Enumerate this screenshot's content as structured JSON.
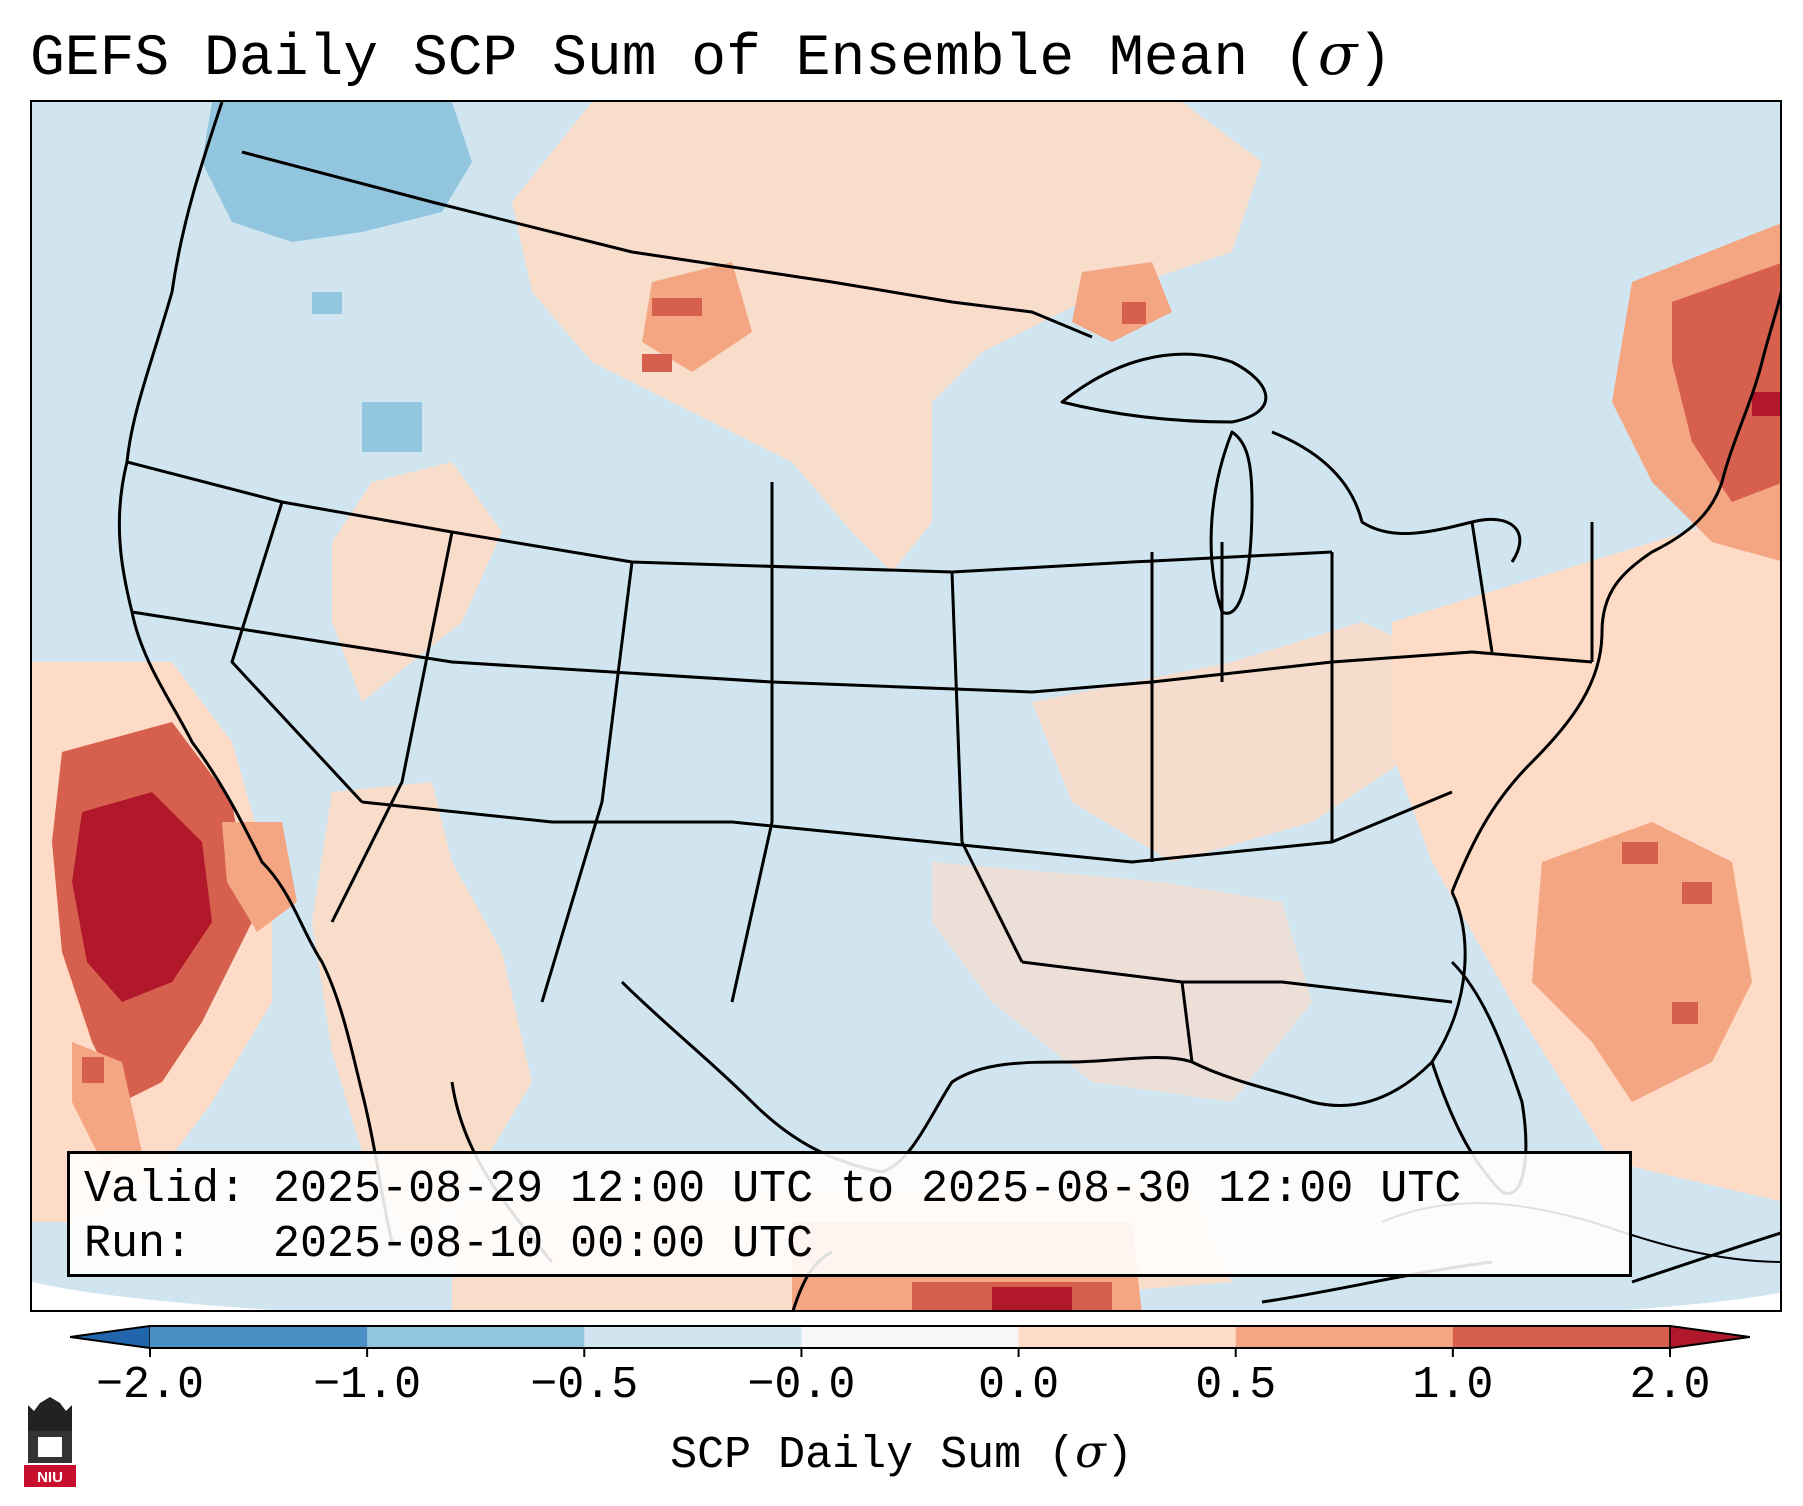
{
  "figure": {
    "title_text": "GEFS Daily SCP Sum of Ensemble Mean (",
    "title_symbol": "σ",
    "title_close": ")"
  },
  "info": {
    "valid_label": "Valid:",
    "valid_value": "2025-08-29 12:00 UTC to 2025-08-30 12:00 UTC",
    "run_label": "Run:",
    "run_value": "2025-08-10 00:00 UTC"
  },
  "colorbar": {
    "label_text": "SCP Daily Sum (",
    "label_symbol": "σ",
    "label_close": ")",
    "ticks": [
      "−2.0",
      "−1.0",
      "−0.5",
      "−0.0",
      "0.0",
      "0.5",
      "1.0",
      "2.0"
    ],
    "colors": [
      "#4a90c4",
      "#92c5de",
      "#d1e5f0",
      "#f7f7f7",
      "#fddbc7",
      "#f4a582",
      "#d6604d"
    ],
    "extend_low_color": "#2166ac",
    "extend_high_color": "#b2182b"
  },
  "map": {
    "projection": "Lambert Conformal (CONUS)",
    "background_color": "#d1e5f0",
    "regions": [
      {
        "name": "pacific-coast-max",
        "value": 2.0,
        "color": "#b2182b"
      },
      {
        "name": "pacific-coast-high",
        "value": 1.0,
        "color": "#d6604d"
      },
      {
        "name": "new-england-high",
        "value": 1.0,
        "color": "#d6604d"
      },
      {
        "name": "north-dakota-montana-elevated",
        "value": 0.5,
        "color": "#f4a582"
      },
      {
        "name": "atlantic-elevated",
        "value": 0.5,
        "color": "#f4a582"
      },
      {
        "name": "gulf-of-mexico-slight",
        "value": 0.2,
        "color": "#fddbc7"
      },
      {
        "name": "pacific-northwest-low",
        "value": -1.0,
        "color": "#92c5de"
      }
    ]
  },
  "logo": {
    "text": "NIU",
    "color": "#c8102e"
  }
}
